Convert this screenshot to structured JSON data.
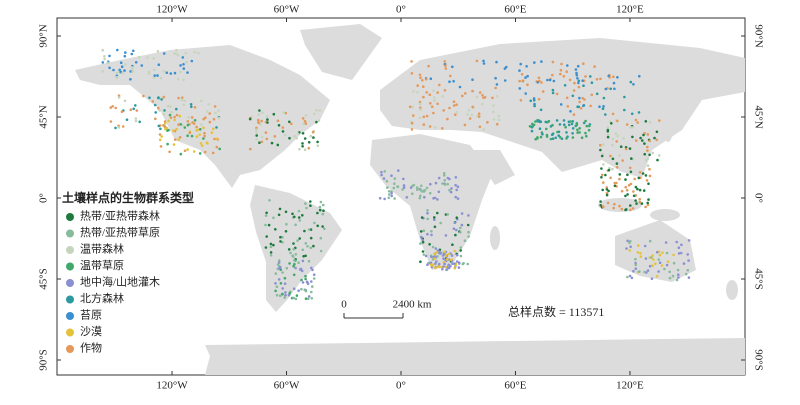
{
  "map": {
    "lon_ticks": [
      {
        "value": -120,
        "label": "120°W"
      },
      {
        "value": -60,
        "label": "60°W"
      },
      {
        "value": 0,
        "label": "0°"
      },
      {
        "value": 60,
        "label": "60°E"
      },
      {
        "value": 120,
        "label": "120°E"
      }
    ],
    "lat_ticks": [
      {
        "value": 90,
        "label": "90°N"
      },
      {
        "value": 45,
        "label": "45°N"
      },
      {
        "value": 0,
        "label": "0°"
      },
      {
        "value": -45,
        "label": "45°S"
      },
      {
        "value": -90,
        "label": "90°S"
      }
    ],
    "legend": {
      "title": "土壤样点的生物群系类型",
      "items": [
        {
          "name": "热带/亚热带森林",
          "color": "#1d7a3c"
        },
        {
          "name": "热带/亚热带草原",
          "color": "#86bb9c"
        },
        {
          "name": "温带森林",
          "color": "#c5d5bc"
        },
        {
          "name": "温带草原",
          "color": "#3fa86a"
        },
        {
          "name": "地中海/山地灌木",
          "color": "#8a90d2"
        },
        {
          "name": "北方森林",
          "color": "#2a9aa0"
        },
        {
          "name": "苔原",
          "color": "#3b8fd0"
        },
        {
          "name": "沙漠",
          "color": "#e5c23b"
        },
        {
          "name": "作物",
          "color": "#e4995a"
        }
      ]
    },
    "scale_bar": {
      "start": "0",
      "end": "2400 km"
    },
    "total": "总样点数 = 113571"
  }
}
